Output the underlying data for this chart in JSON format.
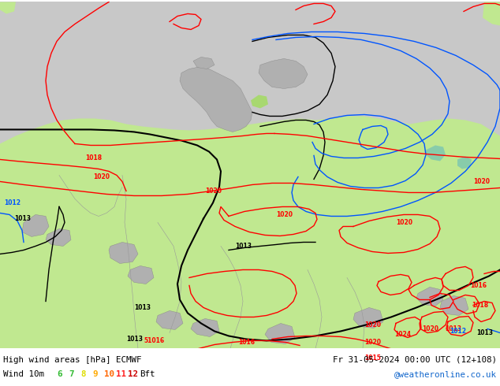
{
  "title_left": "High wind areas [hPa] ECMWF",
  "title_right": "Fr 31-05-2024 00:00 UTC (12+108)",
  "subtitle_left": "Wind 10m",
  "subtitle_right": "@weatheronline.co.uk",
  "bft_numbers": [
    "6",
    "7",
    "8",
    "9",
    "10",
    "11",
    "12"
  ],
  "bft_colors": [
    "#33bb33",
    "#33bb33",
    "#dddd00",
    "#ffaa00",
    "#ff6600",
    "#ff2222",
    "#cc0000"
  ],
  "color_red": "#ff0000",
  "color_black": "#000000",
  "color_blue": "#0055ff",
  "color_ocean": "#c8c8c8",
  "color_land_green": "#c0e890",
  "color_land_gray": "#b0b0b0",
  "color_water_teal": "#88ddcc",
  "fig_width": 6.34,
  "fig_height": 4.9,
  "dpi": 100
}
